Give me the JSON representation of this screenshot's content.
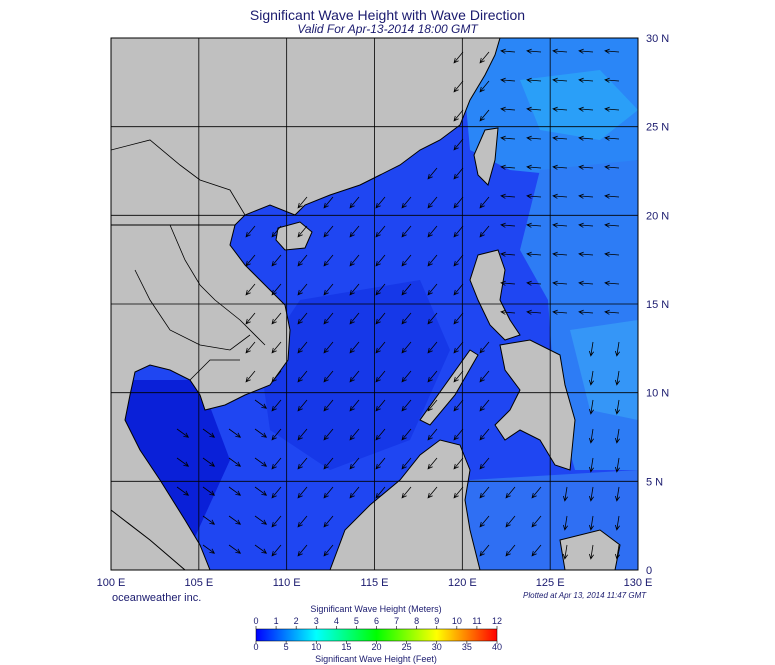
{
  "title": "Significant Wave Height with Wave Direction",
  "subtitle": "Valid For Apr-13-2014 18:00 GMT",
  "credit": "oceanweather inc.",
  "plotted": "Plotted at Apr 13, 2014 11:47 GMT",
  "map": {
    "lon_range": [
      100,
      130
    ],
    "lat_range": [
      0,
      30
    ],
    "lon_ticks": [
      "100 E",
      "105 E",
      "110 E",
      "115 E",
      "120 E",
      "125 E",
      "130 E"
    ],
    "lat_ticks": [
      "30 N",
      "25 N",
      "20 N",
      "15 N",
      "10 N",
      "5 N",
      "0"
    ],
    "grid": true,
    "land_color": "#c0c0c0",
    "sea_color": "#1a3cf0"
  },
  "colorbar": {
    "meters_label": "Significant Wave Height (Meters)",
    "feet_label": "Significant Wave Height (Feet)",
    "meters_ticks": [
      "0",
      "1",
      "2",
      "3",
      "4",
      "5",
      "6",
      "7",
      "8",
      "9",
      "10",
      "11",
      "12"
    ],
    "feet_ticks": [
      "0",
      "5",
      "10",
      "15",
      "20",
      "25",
      "30",
      "35",
      "40"
    ],
    "colors": [
      "#0000ff",
      "#0040ff",
      "#0080ff",
      "#00c0ff",
      "#00ffff",
      "#00ffc0",
      "#00ff80",
      "#00ff40",
      "#00ff00",
      "#40ff00",
      "#80ff00",
      "#c0ff00",
      "#ffff00",
      "#ffc000",
      "#ff8000",
      "#ff4000",
      "#ff0000"
    ]
  }
}
